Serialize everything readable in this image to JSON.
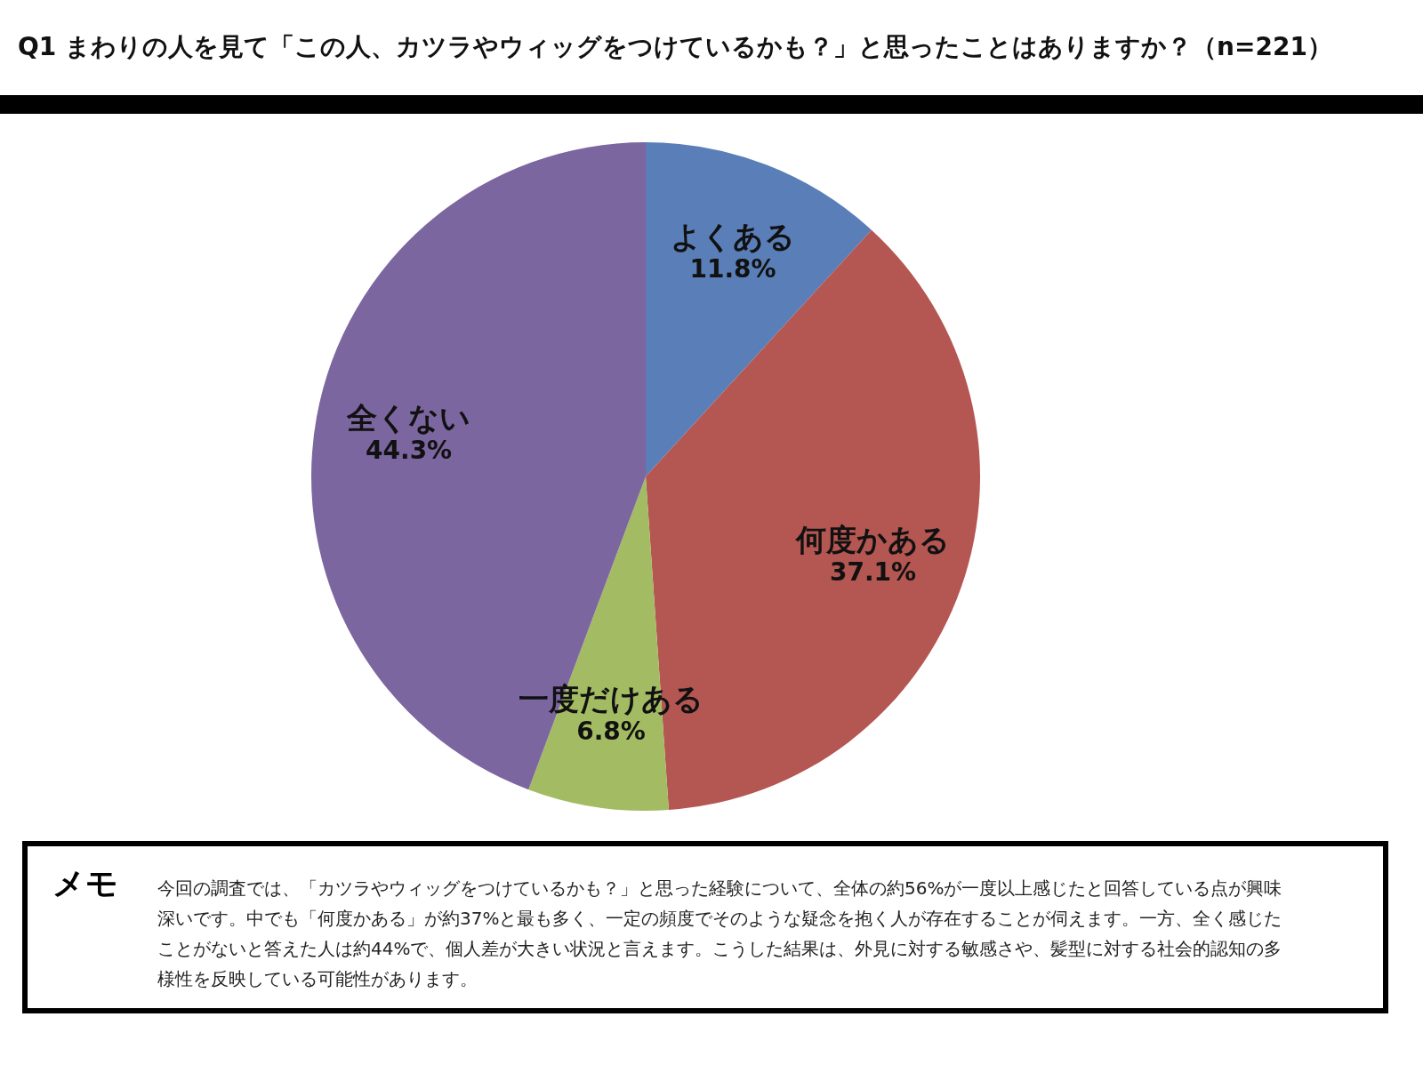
{
  "chart_data": {
    "type": "pie",
    "title": "Q1 まわりの人を見て「この人、カツラやウィッグをつけているかも？」と思ったことはありますか？（n=221）",
    "categories": [
      "よくある",
      "何度かある",
      "一度だけある",
      "全くない"
    ],
    "values": [
      11.8,
      37.1,
      6.8,
      44.3
    ],
    "value_labels": [
      "11.8%",
      "37.1%",
      "6.8%",
      "44.3%"
    ],
    "colors": [
      "#5a7fb8",
      "#b45652",
      "#a3bb62",
      "#7c66a0"
    ],
    "annotations": [
      "メモ",
      "今回の調査では、「カツラやウィッグをつけているかも？」と思った経験について、全体の約56%が一度以上感じたと回答している点が興味深いです。中でも「何度かある」が約37%と最も多く、一定の頻度でそのような疑念を抱く人が存在することが伺えます。一方、全く感じたことがないと答えた人は約44%で、個人差が大きい状況と言えます。こうした結果は、外見に対する敏感さや、髪型に対する社会的認知の多様性を反映している可能性があります。"
    ]
  }
}
